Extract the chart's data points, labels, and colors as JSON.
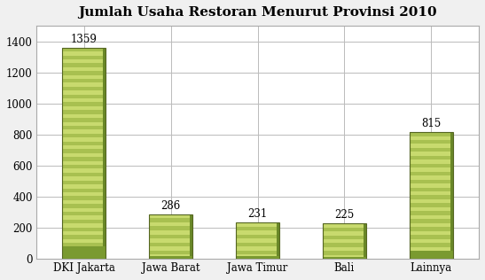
{
  "title": "Jumlah Usaha Restoran Menurut Provinsi 2010",
  "categories": [
    "DKI Jakarta",
    "Jawa Barat",
    "Jawa Timur",
    "Bali",
    "Lainnya"
  ],
  "values": [
    1359,
    286,
    231,
    225,
    815
  ],
  "bar_color_light": "#c8da6e",
  "bar_color_mid": "#a8c050",
  "bar_color_dark": "#7a9a30",
  "bar_color_shadow": "#6a8828",
  "ylim": [
    0,
    1500
  ],
  "yticks": [
    0,
    200,
    400,
    600,
    800,
    1000,
    1200,
    1400
  ],
  "title_fontsize": 11,
  "label_fontsize": 8.5,
  "tick_fontsize": 8.5,
  "background_color": "#f0f0f0",
  "plot_bg_color": "#ffffff",
  "grid_color": "#bbbbbb",
  "bar_edge_color": "#556622",
  "frame_color": "#aaaaaa"
}
